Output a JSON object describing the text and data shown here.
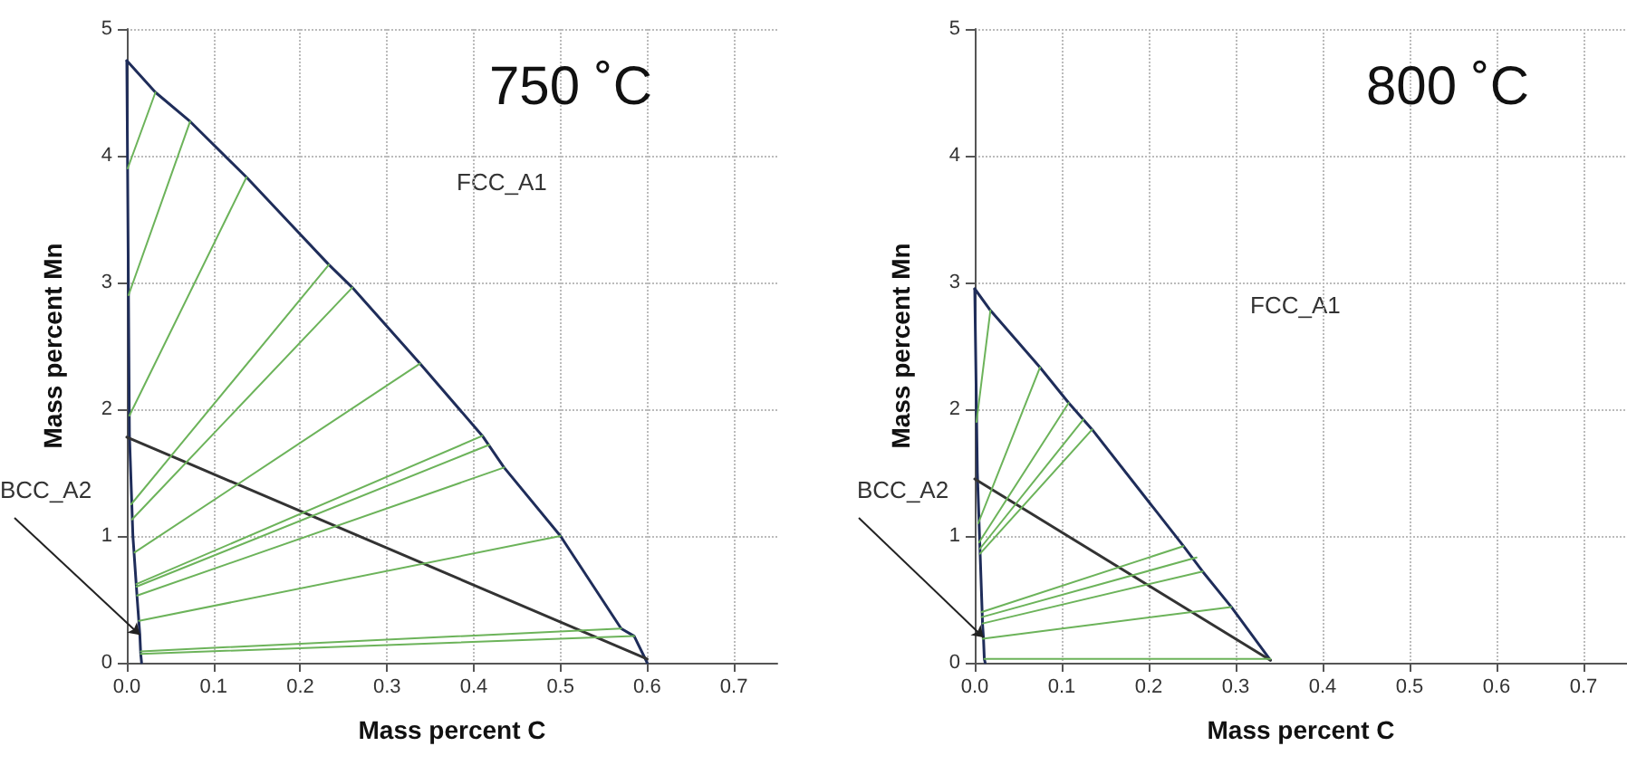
{
  "chart_data": [
    {
      "type": "line",
      "title": "750 ˚C",
      "xlabel": "Mass percent C",
      "ylabel": "Mass percent Mn",
      "xlim": [
        0,
        0.75
      ],
      "xticks": [
        {
          "value": 0,
          "label": "0.0"
        },
        0.1,
        0.2,
        0.3,
        0.4,
        0.5,
        0.6,
        0.7
      ],
      "ylim": [
        0,
        5
      ],
      "yticks": [
        0,
        1,
        2,
        3,
        4,
        5
      ],
      "grid": true,
      "marker": "none",
      "line_style": "solid",
      "annotations": [
        "FCC_A1",
        {
          "text": "BCC_A2",
          "x": 0.015,
          "y": 0.22
        }
      ],
      "series": [
        {
          "color": "#1f2d5a",
          "x": [
            0,
            0.033,
            0.073,
            0.138,
            0.233,
            0.26,
            0.338,
            0.41,
            0.435,
            0.5,
            0.57,
            0.585,
            0.6
          ],
          "values": [
            4.75,
            4.5,
            4.27,
            3.83,
            3.14,
            2.96,
            2.36,
            1.79,
            1.54,
            1.0,
            0.27,
            0.21,
            0
          ]
        },
        {
          "color": "#1f2d5a",
          "x": [
            0,
            0.003,
            0.007,
            0.012,
            0.015,
            0.016,
            0.017
          ],
          "values": [
            4.75,
            1.8,
            1.0,
            0.5,
            0.22,
            0.07,
            0
          ]
        },
        {
          "color": "#333333",
          "x": [
            0,
            0.6
          ],
          "values": [
            1.78,
            0.03
          ]
        },
        {
          "color": "#6cb35a",
          "x": [
            0.001,
            0.033
          ],
          "values": [
            3.9,
            4.5
          ]
        },
        {
          "color": "#6cb35a",
          "x": [
            0.002,
            0.073
          ],
          "values": [
            2.9,
            4.27
          ]
        },
        {
          "color": "#6cb35a",
          "x": [
            0.003,
            0.138
          ],
          "values": [
            1.95,
            3.83
          ]
        },
        {
          "color": "#6cb35a",
          "x": [
            0.005,
            0.233
          ],
          "values": [
            1.25,
            3.14
          ]
        },
        {
          "color": "#6cb35a",
          "x": [
            0.006,
            0.26
          ],
          "values": [
            1.13,
            2.96
          ]
        },
        {
          "color": "#6cb35a",
          "x": [
            0.009,
            0.338
          ],
          "values": [
            0.87,
            2.36
          ]
        },
        {
          "color": "#6cb35a",
          "x": [
            0.011,
            0.41
          ],
          "values": [
            0.62,
            1.79
          ]
        },
        {
          "color": "#6cb35a",
          "x": [
            0.011,
            0.418
          ],
          "values": [
            0.6,
            1.72
          ]
        },
        {
          "color": "#6cb35a",
          "x": [
            0.012,
            0.435
          ],
          "values": [
            0.53,
            1.54
          ]
        },
        {
          "color": "#6cb35a",
          "x": [
            0.014,
            0.5
          ],
          "values": [
            0.33,
            1.0
          ]
        },
        {
          "color": "#6cb35a",
          "x": [
            0.016,
            0.57
          ],
          "values": [
            0.09,
            0.27
          ]
        },
        {
          "color": "#6cb35a",
          "x": [
            0.016,
            0.585
          ],
          "values": [
            0.07,
            0.21
          ]
        }
      ]
    },
    {
      "type": "line",
      "title": "800 ˚C",
      "xlabel": "Mass percent C",
      "ylabel": "Mass percent Mn",
      "xlim": [
        0,
        0.75
      ],
      "xticks": [
        {
          "value": 0,
          "label": "0.0"
        },
        0.1,
        0.2,
        0.3,
        0.4,
        0.5,
        0.6,
        0.7
      ],
      "ylim": [
        0,
        5
      ],
      "yticks": [
        0,
        1,
        2,
        3,
        4,
        5
      ],
      "grid": true,
      "marker": "none",
      "line_style": "solid",
      "annotations": [
        "FCC_A1",
        {
          "text": "BCC_A2",
          "x": 0.01,
          "y": 0.2
        }
      ],
      "series": [
        {
          "color": "#1f2d5a",
          "x": [
            0,
            0.018,
            0.075,
            0.108,
            0.135,
            0.24,
            0.262,
            0.295,
            0.34
          ],
          "values": [
            2.95,
            2.78,
            2.33,
            2.05,
            1.84,
            0.92,
            0.72,
            0.44,
            0.02
          ]
        },
        {
          "color": "#1f2d5a",
          "x": [
            0,
            0.003,
            0.006,
            0.009,
            0.01,
            0.011,
            0.012
          ],
          "values": [
            2.95,
            1.5,
            0.9,
            0.3,
            0.2,
            0.03,
            0
          ]
        },
        {
          "color": "#333333",
          "x": [
            0,
            0.34
          ],
          "values": [
            1.45,
            0.02
          ]
        },
        {
          "color": "#6cb35a",
          "x": [
            0.002,
            0.018
          ],
          "values": [
            1.9,
            2.78
          ]
        },
        {
          "color": "#6cb35a",
          "x": [
            0.004,
            0.075
          ],
          "values": [
            1.1,
            2.33
          ]
        },
        {
          "color": "#6cb35a",
          "x": [
            0.005,
            0.108
          ],
          "values": [
            0.95,
            2.05
          ]
        },
        {
          "color": "#6cb35a",
          "x": [
            0.006,
            0.125
          ],
          "values": [
            0.9,
            1.92
          ]
        },
        {
          "color": "#6cb35a",
          "x": [
            0.006,
            0.135
          ],
          "values": [
            0.86,
            1.84
          ]
        },
        {
          "color": "#6cb35a",
          "x": [
            0.008,
            0.24
          ],
          "values": [
            0.4,
            0.92
          ]
        },
        {
          "color": "#6cb35a",
          "x": [
            0.008,
            0.255
          ],
          "values": [
            0.36,
            0.83
          ]
        },
        {
          "color": "#6cb35a",
          "x": [
            0.009,
            0.262
          ],
          "values": [
            0.31,
            0.72
          ]
        },
        {
          "color": "#6cb35a",
          "x": [
            0.009,
            0.295
          ],
          "values": [
            0.19,
            0.44
          ]
        },
        {
          "color": "#6cb35a",
          "x": [
            0.011,
            0.34
          ],
          "values": [
            0.03,
            0.03
          ]
        }
      ]
    }
  ]
}
